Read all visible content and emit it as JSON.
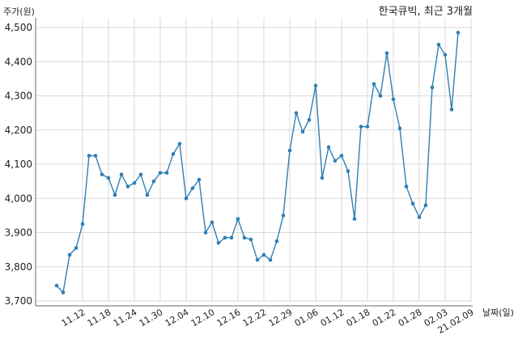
{
  "chart_data": {
    "type": "line",
    "title": "한국큐빅, 최근 3개월",
    "ylabel": "주가(원)",
    "xlabel": "날짜(일)",
    "ylim": [
      3700,
      4500
    ],
    "yticks": [
      3700,
      3800,
      3900,
      4000,
      4100,
      4200,
      4300,
      4400,
      4500
    ],
    "ytick_labels": [
      "3,700",
      "3,800",
      "3,900",
      "4,000",
      "4,100",
      "4,200",
      "4,300",
      "4,400",
      "4,500"
    ],
    "xtick_labels": [
      "11.12",
      "11.18",
      "11.24",
      "11.30",
      "12.04",
      "12.10",
      "12.16",
      "12.22",
      "12.29",
      "01.06",
      "01.12",
      "01.18",
      "01.22",
      "01.28",
      "02.03",
      "21.02.09"
    ],
    "xtick_positions": [
      4,
      8,
      12,
      16,
      20,
      24,
      28,
      32,
      36,
      40,
      44,
      48,
      52,
      56,
      60,
      64
    ],
    "grid": true,
    "series_color": "#2f7fb5",
    "values": [
      3745,
      3725,
      3835,
      3855,
      3925,
      4125,
      4125,
      4070,
      4060,
      4010,
      4070,
      4035,
      4045,
      4070,
      4010,
      4050,
      4075,
      4075,
      4130,
      4160,
      4000,
      4030,
      4055,
      3900,
      3930,
      3870,
      3885,
      3885,
      3940,
      3885,
      3880,
      3820,
      3835,
      3820,
      3875,
      3950,
      4140,
      4250,
      4195,
      4230,
      4330,
      4060,
      4150,
      4110,
      4125,
      4080,
      3940,
      4210,
      4210,
      4335,
      4300,
      4425,
      4290,
      4205,
      4035,
      3985,
      3945,
      3980,
      4325,
      4450,
      4420,
      4260,
      4485
    ]
  }
}
